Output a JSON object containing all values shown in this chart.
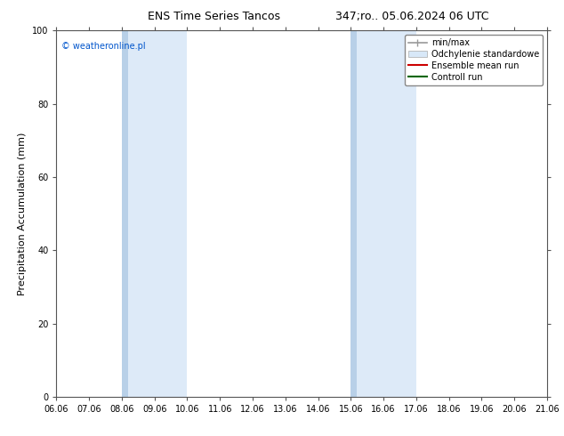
{
  "title_left": "ENS Time Series Tancos",
  "title_right": "347;ro.. 05.06.2024 06 UTC",
  "ylabel": "Precipitation Accumulation (mm)",
  "ylim": [
    0,
    100
  ],
  "yticks": [
    0,
    20,
    40,
    60,
    80,
    100
  ],
  "xtick_labels": [
    "06.06",
    "07.06",
    "08.06",
    "09.06",
    "10.06",
    "11.06",
    "12.06",
    "13.06",
    "14.06",
    "15.06",
    "16.06",
    "17.06",
    "18.06",
    "19.06",
    "20.06",
    "21.06"
  ],
  "xtick_positions": [
    0,
    1,
    2,
    3,
    4,
    5,
    6,
    7,
    8,
    9,
    10,
    11,
    12,
    13,
    14,
    15
  ],
  "shaded_bands": [
    {
      "x_start": 2,
      "x_end": 4,
      "color": "#ddeaf8"
    },
    {
      "x_start": 9,
      "x_end": 11,
      "color": "#ddeaf8"
    }
  ],
  "dark_left_bands": [
    {
      "x_start": 2,
      "x_end": 2.18,
      "color": "#b8d0e8"
    },
    {
      "x_start": 9,
      "x_end": 9.18,
      "color": "#b8d0e8"
    }
  ],
  "watermark_text": "© weatheronline.pl",
  "watermark_color": "#0055cc",
  "background_color": "#ffffff",
  "legend_items": [
    {
      "label": "min/max",
      "color": "#999999",
      "lw": 1.2,
      "type": "line_with_caps"
    },
    {
      "label": "Odchylenie standardowe",
      "color": "#d8e8f8",
      "lw": 8,
      "type": "patch"
    },
    {
      "label": "Ensemble mean run",
      "color": "#cc0000",
      "lw": 1.5,
      "type": "line"
    },
    {
      "label": "Controll run",
      "color": "#006600",
      "lw": 1.5,
      "type": "line"
    }
  ],
  "title_fontsize": 9,
  "watermark_fontsize": 7,
  "axis_label_fontsize": 8,
  "tick_fontsize": 7,
  "legend_fontsize": 7
}
